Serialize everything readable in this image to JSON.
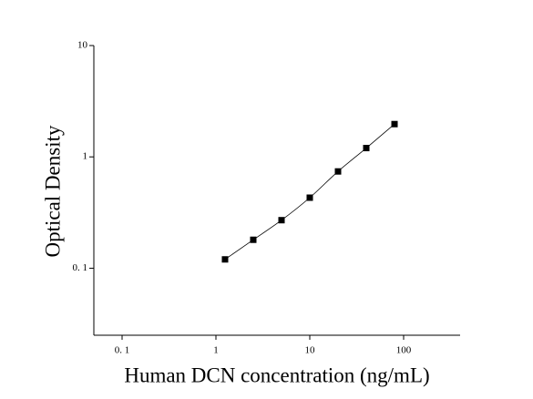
{
  "chart_data": {
    "type": "scatter",
    "x_label": "Human DCN concentration (ng/mL)",
    "y_label": "Optical Density",
    "x": [
      1.25,
      2.5,
      5,
      10,
      20,
      40,
      80
    ],
    "series": [
      {
        "color": "#000000",
        "values": [
          0.12,
          0.18,
          0.27,
          0.43,
          0.74,
          1.2,
          1.97
        ]
      }
    ],
    "x_log": true,
    "y_log": true,
    "xlim": [
      0.05,
      400
    ],
    "ylim": [
      0.025,
      10
    ],
    "xticks": [
      {
        "value": 0.1,
        "label": "0. 1"
      },
      1,
      10,
      100
    ],
    "yticks": [
      {
        "value": 0.1,
        "label": "0. 1"
      },
      1,
      10
    ],
    "fit_line": true
  }
}
